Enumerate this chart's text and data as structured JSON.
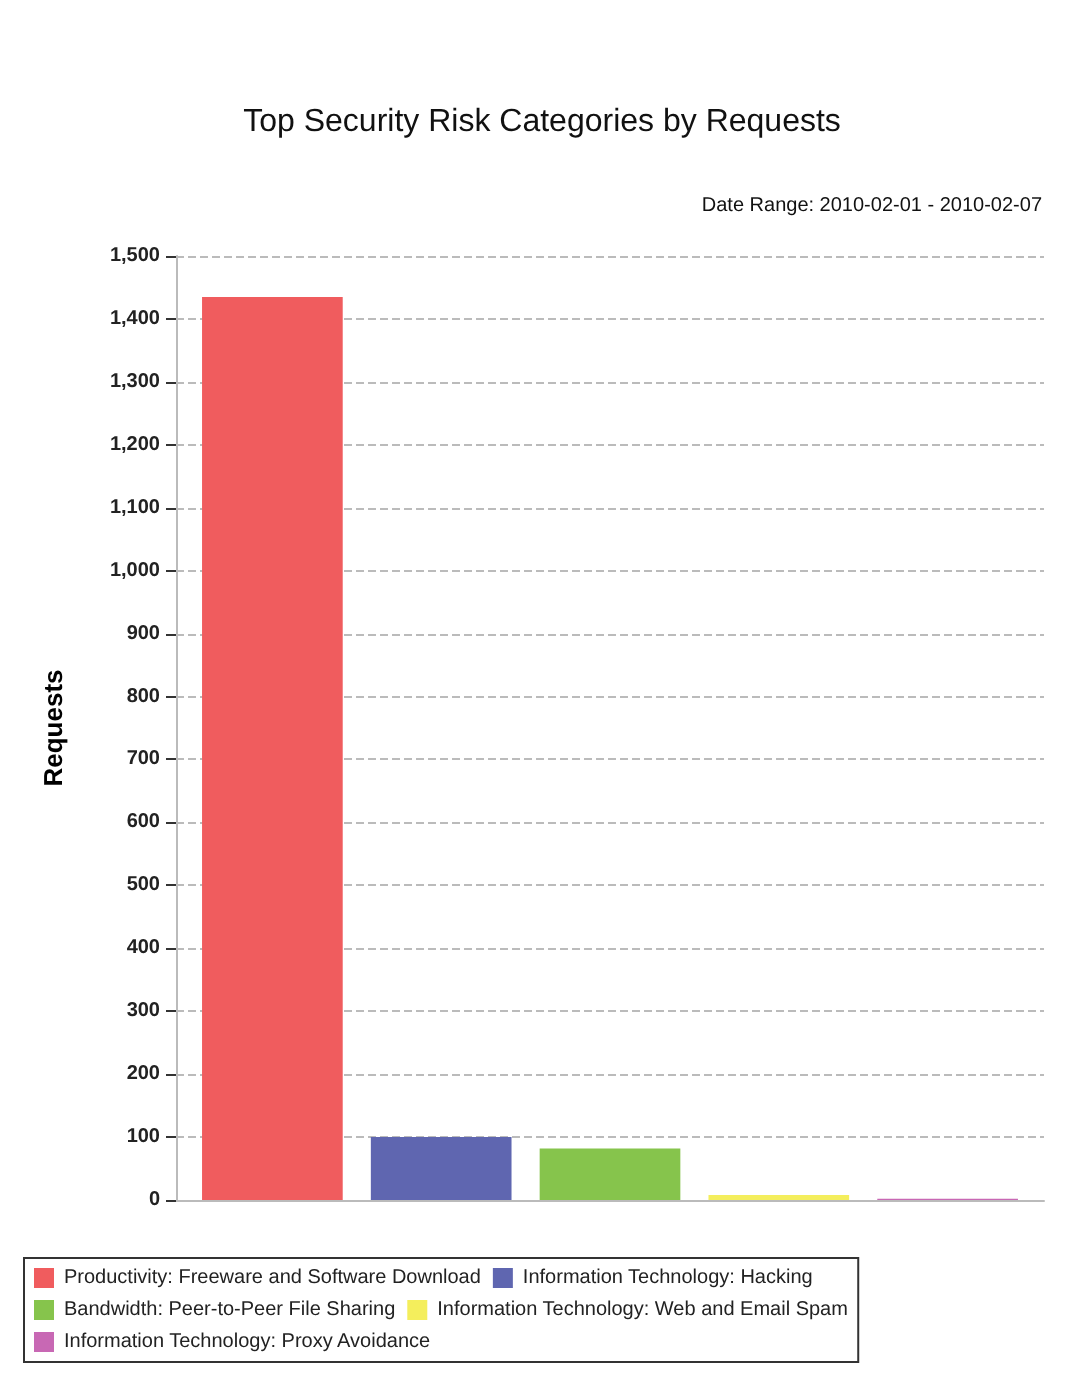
{
  "chart_data": {
    "type": "bar",
    "title": "Top Security Risk Categories by Requests",
    "annotations": [
      "Date Range: 2010-02-01 - 2010-02-07"
    ],
    "ylabel": "Requests",
    "categories": [
      null
    ],
    "series": [
      {
        "name": "Productivity: Freeware and Software Download",
        "color": "#f05c5e",
        "values": [
          1435
        ]
      },
      {
        "name": "Information Technology: Hacking",
        "color": "#5f66b0",
        "values": [
          100
        ]
      },
      {
        "name": "Bandwidth: Peer-to-Peer File Sharing",
        "color": "#86c44c",
        "values": [
          82
        ]
      },
      {
        "name": "Information Technology: Web and Email Spam",
        "color": "#f4ee5c",
        "values": [
          8
        ]
      },
      {
        "name": "Information Technology: Proxy Avoidance",
        "color": "#c868b4",
        "values": [
          2
        ]
      }
    ],
    "ylim": [
      0,
      1500
    ],
    "yticks": [
      0,
      100,
      200,
      300,
      400,
      500,
      600,
      700,
      800,
      900,
      {
        "value": 1000,
        "label": "1,000"
      },
      {
        "value": 1100,
        "label": "1,100"
      },
      {
        "value": 1200,
        "label": "1,200"
      },
      {
        "value": 1300,
        "label": "1,300"
      },
      {
        "value": 1400,
        "label": "1,400"
      },
      {
        "value": 1500,
        "label": "1,500"
      }
    ],
    "grid": "y",
    "legend": "bottom",
    "tick_labels": "y"
  }
}
